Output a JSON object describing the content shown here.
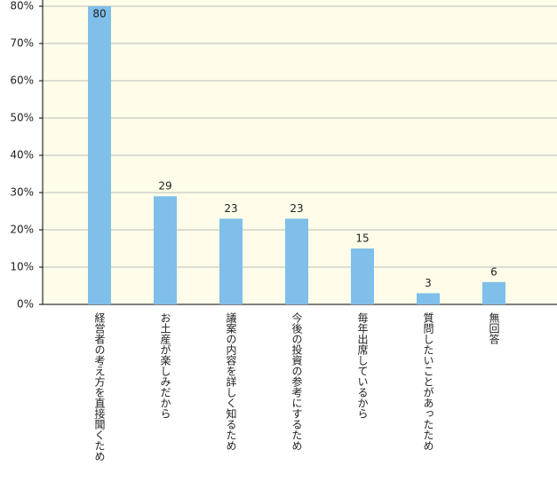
{
  "chart_data": {
    "type": "bar",
    "categories": [
      "経営者の考え方を直接聞くため",
      "お土産が楽しみだから",
      "議案の内容を詳しく知るため",
      "今後の投資の参考にするため",
      "毎年出席しているから",
      "質問したいことがあったため",
      "無回答"
    ],
    "values": [
      80,
      29,
      23,
      23,
      15,
      3,
      6
    ],
    "color": "#7fbfea",
    "background": "#fffde9",
    "ylim": [
      0,
      80
    ],
    "yticks": [
      {
        "value": 0,
        "label": "0%"
      },
      {
        "value": 10,
        "label": "10%"
      },
      {
        "value": 20,
        "label": "20%"
      },
      {
        "value": 30,
        "label": "30%"
      },
      {
        "value": 40,
        "label": "40%"
      },
      {
        "value": 50,
        "label": "50%"
      },
      {
        "value": 60,
        "label": "60%"
      },
      {
        "value": 70,
        "label": "70%"
      },
      {
        "value": 80,
        "label": "80%"
      }
    ],
    "grid": true
  }
}
